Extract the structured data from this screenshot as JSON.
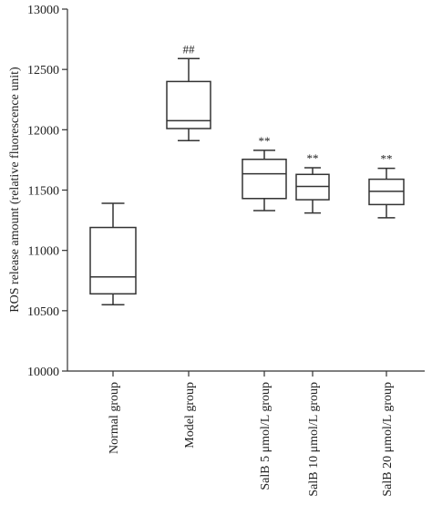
{
  "chart_data": {
    "type": "box",
    "ylabel": "ROS release amount (relative fluorescence unit)",
    "ylim": [
      10000,
      13000
    ],
    "yticks": [
      10000,
      10500,
      11000,
      11500,
      12000,
      12500,
      13000
    ],
    "categories": [
      "Normal group",
      "Model group",
      "SalB 5 μmol/L group",
      "SalB 10 μmol/L group",
      "SalB 20 μmol/L group"
    ],
    "boxes": [
      {
        "min": 10550,
        "q1": 10640,
        "median": 10780,
        "q3": 11190,
        "max": 11390,
        "annotation": ""
      },
      {
        "min": 11910,
        "q1": 12010,
        "median": 12075,
        "q3": 12400,
        "max": 12590,
        "annotation": "##"
      },
      {
        "min": 11330,
        "q1": 11430,
        "median": 11635,
        "q3": 11755,
        "max": 11830,
        "annotation": "**"
      },
      {
        "min": 11310,
        "q1": 11420,
        "median": 11530,
        "q3": 11630,
        "max": 11685,
        "annotation": "**"
      },
      {
        "min": 11270,
        "q1": 11380,
        "median": 11490,
        "q3": 11590,
        "max": 11680,
        "annotation": "**"
      }
    ],
    "grid": false,
    "legend": "none"
  }
}
